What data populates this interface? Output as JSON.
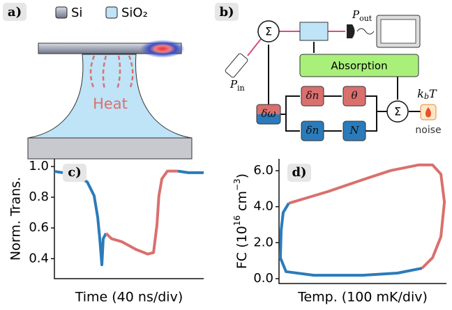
{
  "panel_a": {
    "label": "a)",
    "legend": [
      "Si",
      "SiO₂"
    ],
    "heat": "Heat"
  },
  "panel_b": {
    "label": "b)",
    "sum_top": "Σ",
    "sum_bottom": "Σ",
    "p_out": [
      "P",
      "out"
    ],
    "p_in": [
      "P",
      "in"
    ],
    "absorption": "Absorption",
    "blocks": [
      "δn",
      "θ",
      "δω",
      "δn",
      "N"
    ],
    "kbt": [
      "k",
      "b",
      "T"
    ],
    "noise": "noise"
  },
  "chart_data": [
    {
      "type": "line",
      "panel_label": "c)",
      "xlabel": "Time (40 ns/div)",
      "ylabel": "Norm. Trans.",
      "x": [
        0,
        1.26,
        2.2,
        2.66,
        2.9,
        3.04,
        3.18,
        3.27,
        3.46,
        3.83,
        4.53,
        5.47,
        6.26,
        6.64,
        6.87,
        7.0,
        7.2,
        7.57,
        8.27,
        8.97,
        10
      ],
      "xlim": [
        0,
        10
      ],
      "ylim": [
        0.27,
        1.05
      ],
      "yticks": [
        0.4,
        0.6,
        0.8,
        {
          "value": 1,
          "label": "1.0"
        }
      ],
      "series": [
        {
          "color": "#2b7bba",
          "values": [
            0.968,
            0.95,
            0.9,
            0.81,
            0.67,
            0.53,
            0.36,
            0.53,
            0.565,
            null,
            null,
            null,
            null,
            null,
            null,
            null,
            null,
            null,
            0.97,
            0.96,
            0.96
          ]
        },
        {
          "color": "#d9706e",
          "values": [
            null,
            null,
            null,
            null,
            null,
            null,
            null,
            null,
            0.565,
            0.53,
            0.51,
            0.46,
            0.43,
            0.44,
            0.62,
            0.81,
            0.92,
            0.97,
            0.97,
            null,
            null
          ]
        }
      ]
    },
    {
      "type": "line",
      "panel_label": "d)",
      "xlabel": "Temp. (100 mK/div)",
      "ylabel": [
        "FC (10",
        "16",
        " cm",
        "−3",
        ")"
      ],
      "xlim": [
        0,
        10
      ],
      "ylim": [
        -0.27,
        6.66
      ],
      "yticks": [
        {
          "value": 0,
          "label": "0.0"
        },
        {
          "value": 2,
          "label": "2.0"
        },
        {
          "value": 4,
          "label": "4.0"
        },
        {
          "value": 6,
          "label": "6.0"
        }
      ],
      "series": [
        {
          "color": "#d9706e",
          "x": [
            0.58,
            2.92,
            5.0,
            6.67,
            8.33,
            9.17,
            9.67,
            9.88,
            9.67,
            9.17,
            8.54
          ],
          "values": [
            4.19,
            4.84,
            5.5,
            6.01,
            6.32,
            6.32,
            5.81,
            4.26,
            2.33,
            1.16,
            0.58
          ]
        },
        {
          "color": "#2b7bba",
          "x": [
            8.54,
            7.08,
            5.0,
            2.08,
            0.42,
            0.08,
            0.13,
            0.25,
            0.58
          ],
          "values": [
            0.58,
            0.31,
            0.19,
            0.19,
            0.39,
            1.16,
            2.71,
            3.68,
            4.19
          ]
        }
      ]
    }
  ]
}
